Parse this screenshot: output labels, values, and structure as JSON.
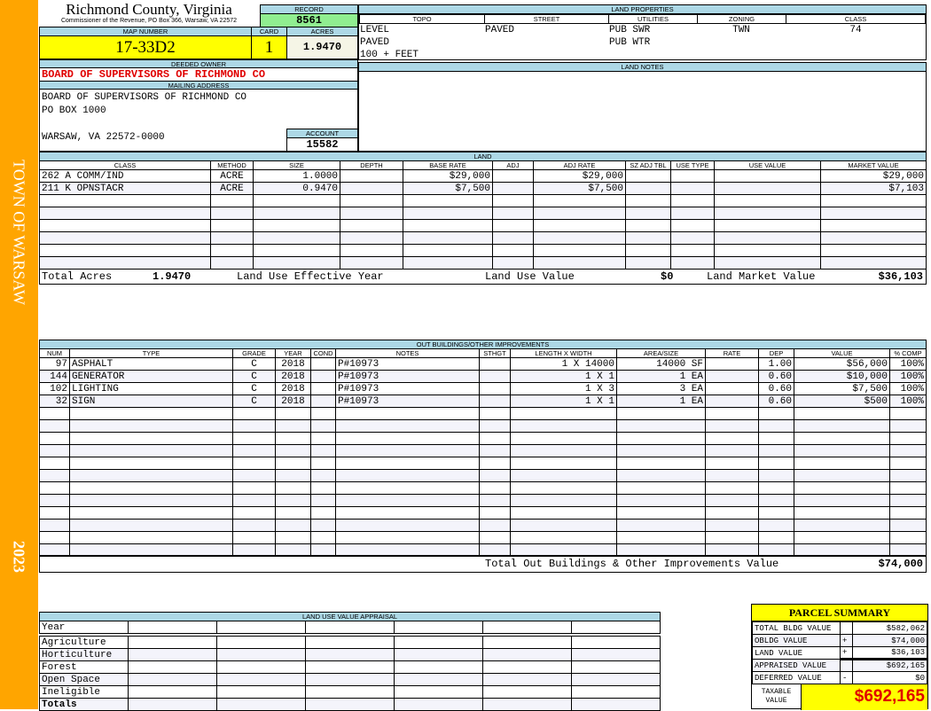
{
  "sidebar": {
    "town": "TOWN OF WARSAW",
    "year": "2023",
    "color": "#FFA500"
  },
  "header": {
    "county": "Richmond County, Virginia",
    "subtitle": "Commissioner of the Revenue, PO Box 366, Warsaw, VA 22572"
  },
  "record": {
    "label": "RECORD",
    "value": "8561"
  },
  "map": {
    "label": "MAP NUMBER",
    "value": "17-33D2"
  },
  "card": {
    "label": "CARD",
    "value": "1"
  },
  "acres": {
    "label": "ACRES",
    "value": "1.9470"
  },
  "owner": {
    "label": "DEEDED OWNER",
    "value": "BOARD OF SUPERVISORS OF RICHMOND CO"
  },
  "mailing": {
    "label": "MAILING ADDRESS",
    "lines": [
      "BOARD OF SUPERVISORS OF RICHMOND CO",
      "PO BOX 1000",
      "",
      "WARSAW, VA 22572-0000"
    ]
  },
  "account": {
    "label": "ACCOUNT",
    "value": "15582"
  },
  "land_properties": {
    "label": "LAND PROPERTIES",
    "headers": [
      "TOPO",
      "STREET",
      "UTILITIES",
      "ZONING",
      "CLASS"
    ],
    "topo": [
      "LEVEL",
      "PAVED",
      "100 + FEET"
    ],
    "street": [
      "PAVED"
    ],
    "utilities": [
      "PUB SWR",
      "PUB WTR"
    ],
    "zoning": "TWN",
    "class": "74"
  },
  "land_notes": {
    "label": "LAND NOTES"
  },
  "land": {
    "label": "LAND",
    "headers": [
      "CLASS",
      "METHOD",
      "SIZE",
      "DEPTH",
      "BASE RATE",
      "ADJ",
      "ADJ RATE",
      "SZ ADJ TBL",
      "USE TYPE",
      "USE VALUE",
      "MARKET VALUE"
    ],
    "rows": [
      [
        "262 A COMM/IND",
        "ACRE",
        "1.0000",
        "",
        "$29,000",
        "",
        "$29,000",
        "",
        "",
        "",
        "$29,000"
      ],
      [
        "211 K OPNSTACR",
        "ACRE",
        "0.9470",
        "",
        "$7,500",
        "",
        "$7,500",
        "",
        "",
        "",
        "$7,103"
      ]
    ],
    "totals": {
      "acres_label": "Total Acres",
      "acres": "1.9470",
      "eff_year_label": "Land Use Effective Year",
      "use_value_label": "Land Use Value",
      "use_value": "$0",
      "market_label": "Land Market Value",
      "market": "$36,103"
    }
  },
  "outbuildings": {
    "label": "OUT BUILDINGS/OTHER IMPROVEMENTS",
    "headers": [
      "NUM",
      "TYPE",
      "GRADE",
      "YEAR",
      "COND",
      "NOTES",
      "STHGT",
      "LENGTH X WIDTH",
      "AREA/SIZE",
      "RATE",
      "DEP",
      "VALUE",
      "% COMP"
    ],
    "rows": [
      [
        "97",
        "ASPHALT",
        "C",
        "2018",
        "",
        "P#10973",
        "",
        "1 X 14000",
        "14000 SF",
        "",
        "1.00",
        "$56,000",
        "100%"
      ],
      [
        "144",
        "GENERATOR",
        "C",
        "2018",
        "",
        "P#10973",
        "",
        "1 X 1",
        "1 EA",
        "",
        "0.60",
        "$10,000",
        "100%"
      ],
      [
        "102",
        "LIGHTING",
        "C",
        "2018",
        "",
        "P#10973",
        "",
        "1 X 3",
        "3 EA",
        "",
        "0.60",
        "$7,500",
        "100%"
      ],
      [
        "32",
        "SIGN",
        "C",
        "2018",
        "",
        "P#10973",
        "",
        "1 X 1",
        "1 EA",
        "",
        "0.60",
        "$500",
        "100%"
      ]
    ],
    "total_label": "Total Out Buildings & Other Improvements Value",
    "total": "$74,000"
  },
  "land_use": {
    "label": "LAND USE VALUE APPRAISAL",
    "year_label": "Year",
    "rows": [
      "Agriculture",
      "Horticulture",
      "Forest",
      "Open Space",
      "Ineligible",
      "Totals"
    ]
  },
  "summary": {
    "title": "PARCEL SUMMARY",
    "rows": [
      [
        "TOTAL BLDG VALUE",
        "",
        "$582,062"
      ],
      [
        "OBLDG VALUE",
        "+",
        "$74,000"
      ],
      [
        "LAND VALUE",
        "+",
        "$36,103"
      ],
      [
        "APPRAISED VALUE",
        "",
        "$692,165"
      ],
      [
        "DEFERRED VALUE",
        "-",
        "$0"
      ]
    ],
    "taxable_label": "TAXABLE VALUE",
    "taxable": "$692,165"
  }
}
